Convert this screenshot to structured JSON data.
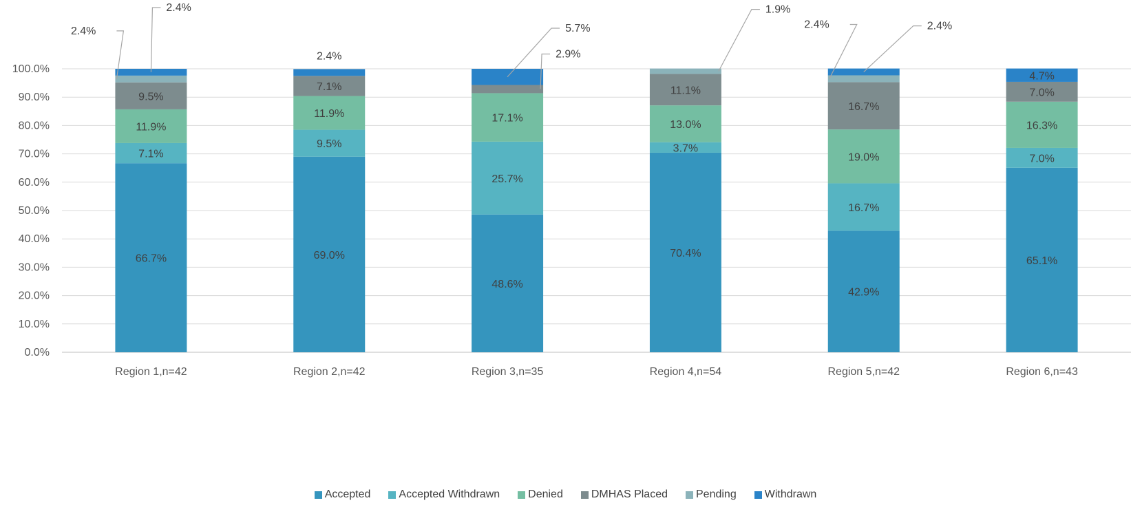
{
  "chart_data": {
    "type": "bar",
    "stacked": true,
    "categories": [
      "Region 1,n=42",
      "Region 2,n=42",
      "Region 3,n=35",
      "Region 4,n=54",
      "Region 5,n=42",
      "Region 6,n=43"
    ],
    "series": [
      {
        "name": "Accepted",
        "color": "#3595BE",
        "values": [
          66.7,
          69.0,
          48.6,
          70.4,
          42.9,
          65.1
        ],
        "labels": [
          "66.7%",
          "69.0%",
          "48.6%",
          "70.4%",
          "42.9%",
          "65.1%"
        ]
      },
      {
        "name": "Accepted Withdrawn",
        "color": "#56B4C2",
        "values": [
          7.1,
          9.5,
          25.7,
          3.7,
          16.7,
          7.0
        ],
        "labels": [
          "7.1%",
          "9.5%",
          "25.7%",
          "3.7%",
          "16.7%",
          "7.0%"
        ]
      },
      {
        "name": "Denied",
        "color": "#74BEA2",
        "values": [
          11.9,
          11.9,
          17.1,
          13.0,
          19.0,
          16.3
        ],
        "labels": [
          "11.9%",
          "11.9%",
          "17.1%",
          "13.0%",
          "19.0%",
          "16.3%"
        ]
      },
      {
        "name": "DMHAS Placed",
        "color": "#7D8C8E",
        "values": [
          9.5,
          7.1,
          2.9,
          11.1,
          16.7,
          7.0
        ],
        "labels": [
          "9.5%",
          "7.1%",
          "2.9%",
          "11.1%",
          "16.7%",
          "7.0%"
        ]
      },
      {
        "name": "Pending",
        "color": "#8BB3BA",
        "values": [
          2.4,
          0,
          0,
          1.9,
          2.4,
          0
        ],
        "labels": [
          "2.4%",
          "",
          "",
          "1.9%",
          "2.4%",
          ""
        ]
      },
      {
        "name": "Withdrawn",
        "color": "#2A83C8",
        "values": [
          2.4,
          2.4,
          5.7,
          0,
          2.4,
          4.7
        ],
        "labels": [
          "2.4%",
          "2.4%",
          "5.7%",
          "",
          "2.4%",
          "4.7%"
        ]
      }
    ],
    "ylim": [
      0,
      100
    ],
    "yticks": [
      "0.0%",
      "10.0%",
      "20.0%",
      "30.0%",
      "40.0%",
      "50.0%",
      "60.0%",
      "70.0%",
      "80.0%",
      "90.0%",
      "100.0%"
    ],
    "grid": true,
    "legend_position": "bottom",
    "title": "",
    "xlabel": "",
    "ylabel": ""
  }
}
